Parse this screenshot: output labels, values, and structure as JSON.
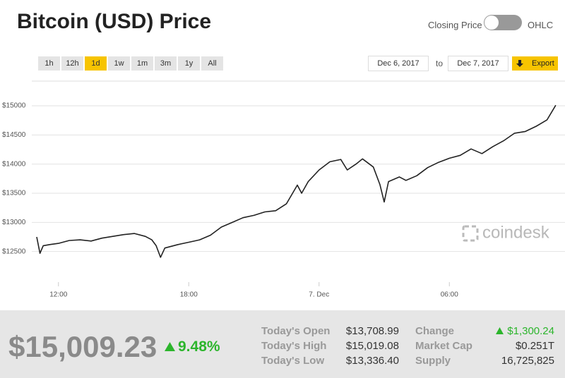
{
  "header": {
    "title": "Bitcoin (USD) Price",
    "toggle_left": "Closing Price",
    "toggle_right": "OHLC"
  },
  "controls": {
    "ranges": [
      "1h",
      "12h",
      "1d",
      "1w",
      "1m",
      "3m",
      "1y",
      "All"
    ],
    "active_range": 2,
    "date_from": "Dec 6, 2017",
    "to": "to",
    "date_to": "Dec 7, 2017",
    "export": "Export"
  },
  "chart_data": {
    "type": "line",
    "watermark": "coindesk",
    "color": "#222222",
    "x": [
      11.0,
      11.15,
      11.3,
      11.6,
      12.0,
      12.5,
      13.0,
      13.5,
      14.0,
      14.5,
      15.0,
      15.5,
      16.0,
      16.3,
      16.5,
      16.7,
      16.9,
      17.5,
      18.0,
      18.5,
      19.0,
      19.5,
      20.0,
      20.5,
      21.0,
      21.5,
      22.0,
      22.5,
      23.0,
      23.2,
      23.5,
      24.0,
      24.5,
      25.0,
      25.3,
      25.7,
      26.0,
      26.5,
      26.8,
      27.0,
      27.2,
      27.7,
      28.0,
      28.5,
      29.0,
      29.5,
      30.0,
      30.5,
      31.0,
      31.5,
      32.0,
      32.5,
      33.0,
      33.5,
      34.0,
      34.5,
      34.9
    ],
    "values": [
      12750,
      12470,
      12600,
      12620,
      12640,
      12690,
      12700,
      12680,
      12730,
      12760,
      12790,
      12810,
      12760,
      12700,
      12600,
      12400,
      12560,
      12620,
      12660,
      12700,
      12780,
      12920,
      13000,
      13080,
      13120,
      13180,
      13200,
      13320,
      13640,
      13500,
      13700,
      13900,
      14040,
      14080,
      13900,
      14000,
      14090,
      13950,
      13650,
      13350,
      13700,
      13780,
      13720,
      13800,
      13940,
      14030,
      14100,
      14150,
      14260,
      14180,
      14300,
      14400,
      14530,
      14560,
      14650,
      14760,
      15010
    ],
    "xlim": [
      11,
      35
    ],
    "xticks": [
      {
        "value": 12,
        "label": "12:00"
      },
      {
        "value": 18,
        "label": "18:00"
      },
      {
        "value": 24,
        "label": "7. Dec"
      },
      {
        "value": 30,
        "label": "06:00"
      }
    ],
    "ylim": [
      12000,
      15400
    ],
    "yticks": [
      {
        "value": 12500,
        "label": "$12500"
      },
      {
        "value": 13000,
        "label": "$13000"
      },
      {
        "value": 13500,
        "label": "$13500"
      },
      {
        "value": 14000,
        "label": "$14000"
      },
      {
        "value": 14500,
        "label": "$14500"
      },
      {
        "value": 15000,
        "label": "$15000"
      }
    ],
    "grid": true
  },
  "summary": {
    "price": "$15,009.23",
    "change_pct": "9.48%",
    "stats": [
      [
        "Today's Open",
        "$13,708.99",
        "Change",
        "$1,300.24"
      ],
      [
        "Today's High",
        "$15,019.08",
        "Market Cap",
        "$0.251T"
      ],
      [
        "Today's Low",
        "$13,336.40",
        "Supply",
        "16,725,825"
      ]
    ]
  }
}
